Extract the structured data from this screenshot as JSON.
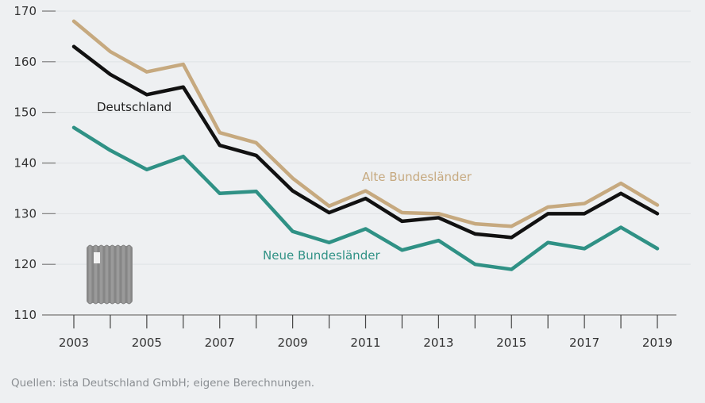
{
  "chart_data": {
    "type": "line",
    "x": [
      2003,
      2004,
      2005,
      2006,
      2007,
      2008,
      2009,
      2010,
      2011,
      2012,
      2013,
      2014,
      2015,
      2016,
      2017,
      2018,
      2019
    ],
    "x_tick_labels": [
      "2003",
      "2005",
      "2007",
      "2009",
      "2011",
      "2013",
      "2015",
      "2017",
      "2019"
    ],
    "y_ticks": [
      110,
      120,
      130,
      140,
      150,
      160,
      170
    ],
    "ylim": [
      110,
      170
    ],
    "grid": "horizontal",
    "series": [
      {
        "name": "Alte Bundesländer",
        "color": "#c6a97f",
        "values": [
          168,
          162,
          158,
          159.5,
          146,
          144,
          137,
          131.5,
          134.5,
          130.2,
          130,
          128,
          127.5,
          131.3,
          132,
          136,
          131.7
        ]
      },
      {
        "name": "Deutschland",
        "color": "#111111",
        "values": [
          163,
          157.5,
          153.5,
          155,
          143.5,
          141.5,
          134.5,
          130.2,
          133,
          128.5,
          129.2,
          126,
          125.3,
          130,
          130,
          134,
          130
        ]
      },
      {
        "name": "Neue Bundesländer",
        "color": "#2f9185",
        "values": [
          147,
          142.5,
          138.7,
          141.3,
          134,
          134.4,
          126.5,
          124.3,
          127,
          122.8,
          124.7,
          120,
          119,
          124.3,
          123.1,
          127.3,
          123.1
        ]
      }
    ],
    "source": "Quellen: ista Deutschland GmbH; eigene Berechnungen."
  },
  "icons": {
    "radiator": "radiator-icon"
  }
}
